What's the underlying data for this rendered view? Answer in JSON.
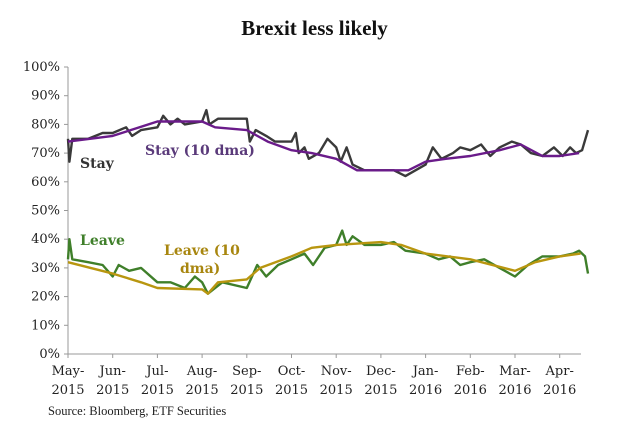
{
  "chart_data": {
    "type": "line",
    "title": "Brexit less likely",
    "source": "Source: Bloomberg, ETF Securities",
    "ylim": [
      0,
      100
    ],
    "yticks": [
      "0%",
      "10%",
      "20%",
      "30%",
      "40%",
      "50%",
      "60%",
      "70%",
      "80%",
      "90%",
      "100%"
    ],
    "xticks": [
      [
        "May-",
        "2015"
      ],
      [
        "Jun-",
        "2015"
      ],
      [
        "Jul-",
        "2015"
      ],
      [
        "Aug-",
        "2015"
      ],
      [
        "Sep-",
        "2015"
      ],
      [
        "Oct-",
        "2015"
      ],
      [
        "Nov-",
        "2015"
      ],
      [
        "Dec-",
        "2015"
      ],
      [
        "Jan-",
        "2016"
      ],
      [
        "Feb-",
        "2016"
      ],
      [
        "Mar-",
        "2016"
      ],
      [
        "Apr-",
        "2016"
      ]
    ],
    "xlim": [
      "2015-05-01",
      "2016-04-20"
    ],
    "grid": false,
    "series": [
      {
        "name": "Stay",
        "color": "#3a3a3a",
        "label_color": "#333333",
        "points": [
          [
            "2015-05-01",
            75
          ],
          [
            "2015-05-02",
            67
          ],
          [
            "2015-05-04",
            75
          ],
          [
            "2015-05-15",
            75
          ],
          [
            "2015-05-25",
            77
          ],
          [
            "2015-06-01",
            77
          ],
          [
            "2015-06-10",
            79
          ],
          [
            "2015-06-14",
            76
          ],
          [
            "2015-06-20",
            78
          ],
          [
            "2015-07-01",
            79
          ],
          [
            "2015-07-05",
            83
          ],
          [
            "2015-07-10",
            80
          ],
          [
            "2015-07-15",
            82
          ],
          [
            "2015-07-20",
            80
          ],
          [
            "2015-08-01",
            81
          ],
          [
            "2015-08-04",
            85
          ],
          [
            "2015-08-06",
            80
          ],
          [
            "2015-08-12",
            82
          ],
          [
            "2015-09-01",
            82
          ],
          [
            "2015-09-03",
            74
          ],
          [
            "2015-09-07",
            78
          ],
          [
            "2015-09-14",
            76
          ],
          [
            "2015-09-20",
            74
          ],
          [
            "2015-10-01",
            74
          ],
          [
            "2015-10-04",
            77
          ],
          [
            "2015-10-06",
            70
          ],
          [
            "2015-10-10",
            72
          ],
          [
            "2015-10-13",
            68
          ],
          [
            "2015-10-20",
            70
          ],
          [
            "2015-10-26",
            75
          ],
          [
            "2015-11-01",
            72
          ],
          [
            "2015-11-04",
            67
          ],
          [
            "2015-11-08",
            72
          ],
          [
            "2015-11-12",
            66
          ],
          [
            "2015-11-20",
            64
          ],
          [
            "2015-12-01",
            64
          ],
          [
            "2015-12-10",
            64
          ],
          [
            "2015-12-18",
            62
          ],
          [
            "2015-12-25",
            64
          ],
          [
            "2016-01-01",
            66
          ],
          [
            "2016-01-06",
            72
          ],
          [
            "2016-01-12",
            68
          ],
          [
            "2016-01-20",
            70
          ],
          [
            "2016-01-25",
            72
          ],
          [
            "2016-02-01",
            71
          ],
          [
            "2016-02-08",
            73
          ],
          [
            "2016-02-14",
            69
          ],
          [
            "2016-02-20",
            72
          ],
          [
            "2016-02-28",
            74
          ],
          [
            "2016-03-05",
            73
          ],
          [
            "2016-03-12",
            70
          ],
          [
            "2016-03-20",
            69
          ],
          [
            "2016-03-28",
            72
          ],
          [
            "2016-04-03",
            69
          ],
          [
            "2016-04-08",
            72
          ],
          [
            "2016-04-12",
            70
          ],
          [
            "2016-04-16",
            71
          ],
          [
            "2016-04-20",
            78
          ]
        ]
      },
      {
        "name": "Stay (10 dma)",
        "color": "#6a1b8a",
        "label_color": "#5a3a7a",
        "points": [
          [
            "2015-05-01",
            74
          ],
          [
            "2015-06-01",
            76
          ],
          [
            "2015-07-01",
            81
          ],
          [
            "2015-08-01",
            81
          ],
          [
            "2015-08-10",
            79
          ],
          [
            "2015-09-01",
            78
          ],
          [
            "2015-09-15",
            74
          ],
          [
            "2015-10-01",
            71
          ],
          [
            "2015-10-15",
            70
          ],
          [
            "2015-11-01",
            68
          ],
          [
            "2015-11-15",
            64
          ],
          [
            "2015-12-01",
            64
          ],
          [
            "2015-12-20",
            64
          ],
          [
            "2016-01-01",
            67
          ],
          [
            "2016-01-15",
            68
          ],
          [
            "2016-02-01",
            69
          ],
          [
            "2016-02-20",
            71
          ],
          [
            "2016-03-05",
            73
          ],
          [
            "2016-03-20",
            69
          ],
          [
            "2016-04-01",
            69
          ],
          [
            "2016-04-14",
            70
          ]
        ]
      },
      {
        "name": "Leave",
        "color": "#3f7f2a",
        "label_color": "#3f7f2a",
        "points": [
          [
            "2015-05-01",
            33
          ],
          [
            "2015-05-02",
            40
          ],
          [
            "2015-05-04",
            33
          ],
          [
            "2015-05-15",
            32
          ],
          [
            "2015-05-25",
            31
          ],
          [
            "2015-06-01",
            27
          ],
          [
            "2015-06-05",
            31
          ],
          [
            "2015-06-12",
            29
          ],
          [
            "2015-06-20",
            30
          ],
          [
            "2015-07-01",
            25
          ],
          [
            "2015-07-10",
            25
          ],
          [
            "2015-07-20",
            23
          ],
          [
            "2015-07-27",
            27
          ],
          [
            "2015-08-01",
            25
          ],
          [
            "2015-08-05",
            21
          ],
          [
            "2015-08-15",
            25
          ],
          [
            "2015-09-01",
            23
          ],
          [
            "2015-09-08",
            31
          ],
          [
            "2015-09-14",
            27
          ],
          [
            "2015-09-22",
            31
          ],
          [
            "2015-10-01",
            33
          ],
          [
            "2015-10-10",
            35
          ],
          [
            "2015-10-16",
            31
          ],
          [
            "2015-10-24",
            37
          ],
          [
            "2015-11-01",
            38
          ],
          [
            "2015-11-05",
            43
          ],
          [
            "2015-11-08",
            38
          ],
          [
            "2015-11-12",
            41
          ],
          [
            "2015-11-20",
            38
          ],
          [
            "2015-12-01",
            38
          ],
          [
            "2015-12-10",
            39
          ],
          [
            "2015-12-18",
            36
          ],
          [
            "2016-01-01",
            35
          ],
          [
            "2016-01-10",
            33
          ],
          [
            "2016-01-18",
            34
          ],
          [
            "2016-01-25",
            31
          ],
          [
            "2016-02-01",
            32
          ],
          [
            "2016-02-10",
            33
          ],
          [
            "2016-02-20",
            30
          ],
          [
            "2016-03-01",
            27
          ],
          [
            "2016-03-10",
            31
          ],
          [
            "2016-03-20",
            34
          ],
          [
            "2016-04-01",
            34
          ],
          [
            "2016-04-10",
            35
          ],
          [
            "2016-04-14",
            36
          ],
          [
            "2016-04-18",
            34
          ],
          [
            "2016-04-20",
            28
          ]
        ]
      },
      {
        "name": "Leave (10 dma)",
        "color": "#b8960f",
        "label_color": "#a8860f",
        "points": [
          [
            "2015-05-01",
            32
          ],
          [
            "2015-06-01",
            28
          ],
          [
            "2015-06-20",
            25
          ],
          [
            "2015-07-01",
            23
          ],
          [
            "2015-08-01",
            22.5
          ],
          [
            "2015-08-05",
            21
          ],
          [
            "2015-08-12",
            25
          ],
          [
            "2015-09-01",
            26
          ],
          [
            "2015-09-10",
            30
          ],
          [
            "2015-10-01",
            34
          ],
          [
            "2015-10-15",
            37
          ],
          [
            "2015-11-01",
            38
          ],
          [
            "2015-12-01",
            39
          ],
          [
            "2015-12-15",
            38
          ],
          [
            "2016-01-01",
            35
          ],
          [
            "2016-02-01",
            33
          ],
          [
            "2016-03-01",
            29
          ],
          [
            "2016-03-15",
            32
          ],
          [
            "2016-04-01",
            34
          ],
          [
            "2016-04-15",
            35
          ]
        ]
      }
    ]
  }
}
